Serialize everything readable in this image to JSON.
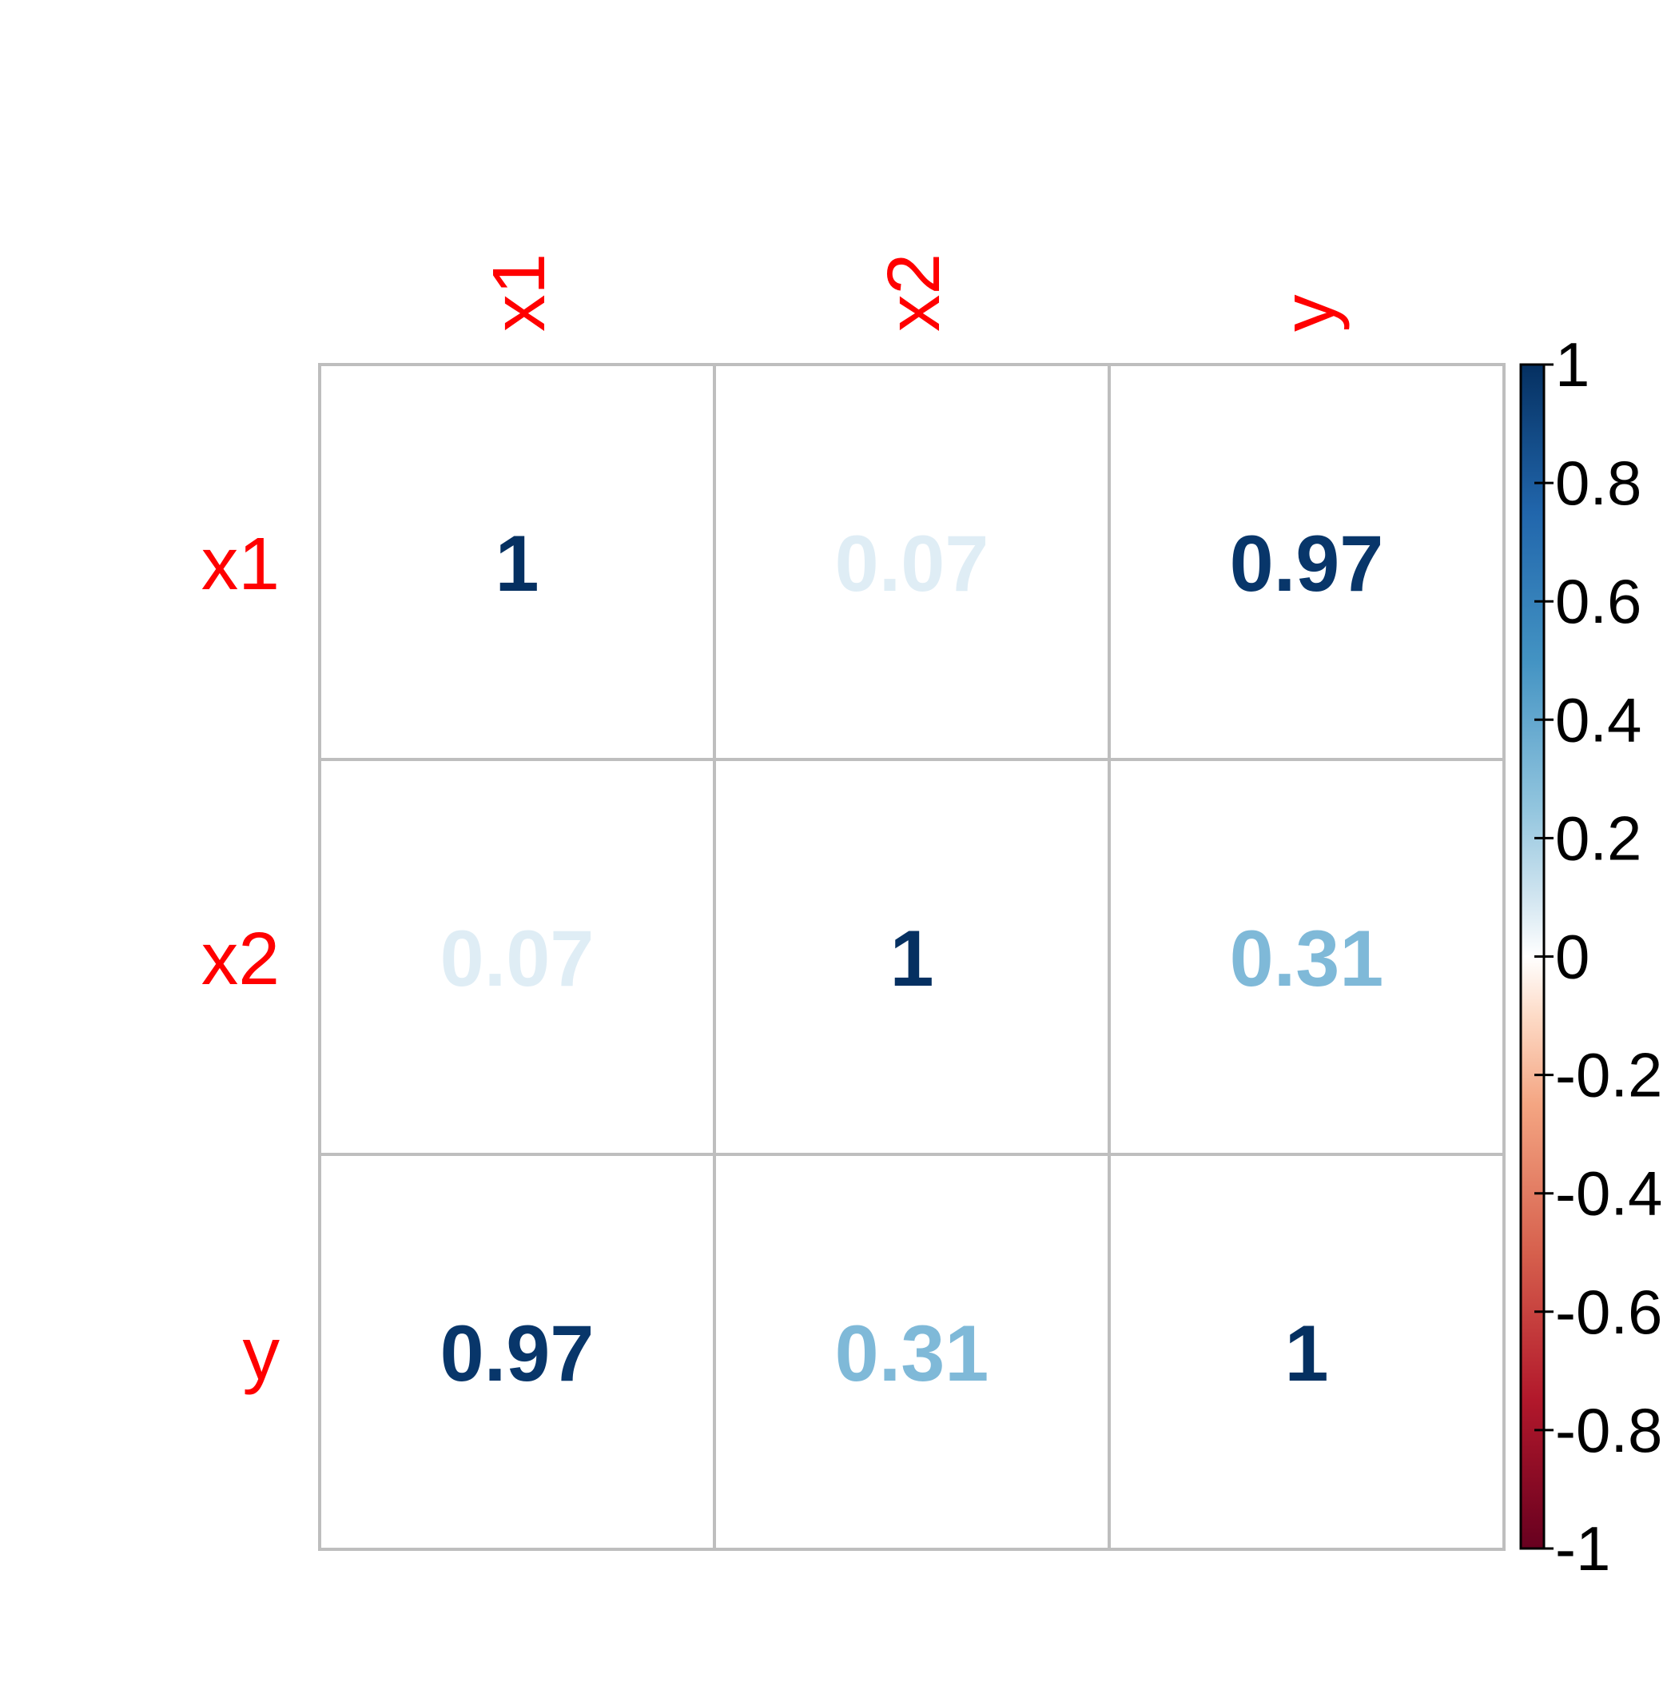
{
  "chart_data": {
    "type": "heatmap",
    "title": "",
    "variables": [
      "x1",
      "x2",
      "y"
    ],
    "matrix": [
      [
        1,
        0.07,
        0.97
      ],
      [
        0.07,
        1,
        0.31
      ],
      [
        0.97,
        0.31,
        1
      ]
    ],
    "value_labels": [
      [
        "1",
        "0.07",
        "0.97"
      ],
      [
        "0.07",
        "1",
        "0.31"
      ],
      [
        "0.97",
        "0.31",
        "1"
      ]
    ],
    "colorbar": {
      "range": [
        -1,
        1
      ],
      "tick_values": [
        1,
        0.8,
        0.6,
        0.4,
        0.2,
        0,
        -0.2,
        -0.4,
        -0.6,
        -0.8,
        -1
      ],
      "tick_labels": [
        "1",
        "0.8",
        "0.6",
        "0.4",
        "0.2",
        "0",
        "-0.2",
        "-0.4",
        "-0.6",
        "-0.8",
        "-1"
      ],
      "stops": [
        {
          "value": 1,
          "color": "#053061"
        },
        {
          "value": 0.75,
          "color": "#2166AC"
        },
        {
          "value": 0.5,
          "color": "#4393C3"
        },
        {
          "value": 0.25,
          "color": "#92C5DE"
        },
        {
          "value": 0.1,
          "color": "#D1E5F0"
        },
        {
          "value": 0,
          "color": "#FFFFFF"
        },
        {
          "value": -0.1,
          "color": "#FDDBC7"
        },
        {
          "value": -0.25,
          "color": "#F4A582"
        },
        {
          "value": -0.5,
          "color": "#D6604D"
        },
        {
          "value": -0.75,
          "color": "#B2182B"
        },
        {
          "value": -1,
          "color": "#67001F"
        }
      ]
    },
    "label_color": "#ff0000",
    "grid_color": "#bebebe"
  }
}
